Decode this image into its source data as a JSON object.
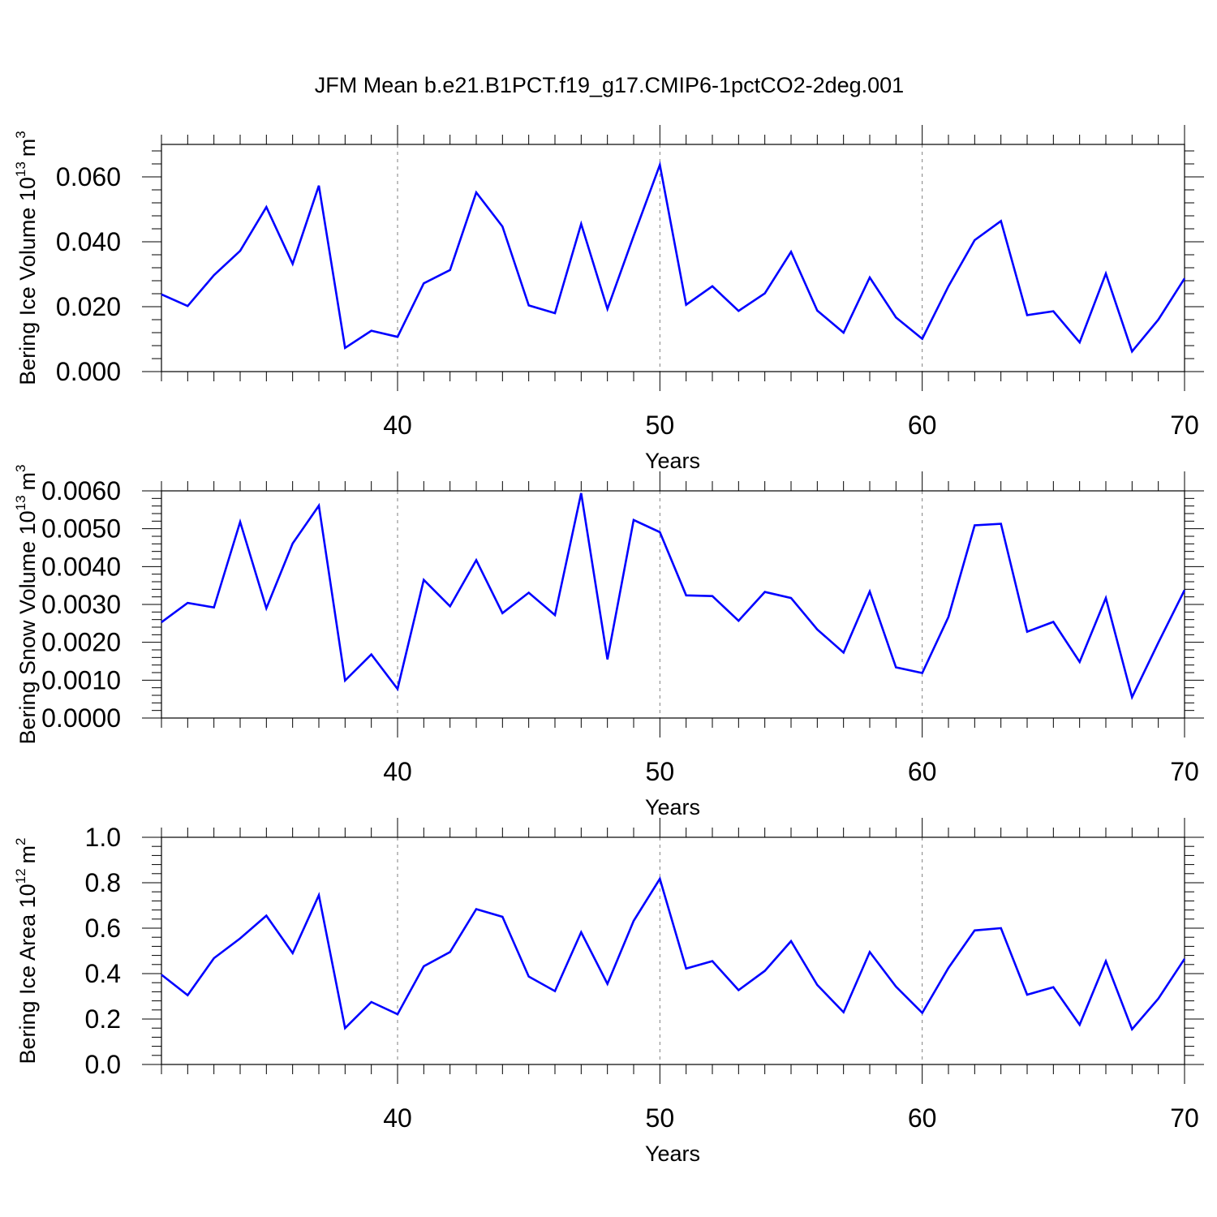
{
  "title": "JFM Mean b.e21.B1PCT.f19_g17.CMIP6-1pctCO2-2deg.001",
  "colors": {
    "line": "#0000ff",
    "axis": "#000000",
    "grid": "#7f7f7f",
    "background": "#ffffff"
  },
  "chart_data": [
    {
      "type": "line",
      "ylabel_text": "Bering Ice Volume 10",
      "ylabel_exp": "13",
      "ylabel_unit": "m",
      "ylabel_unit_exp": "3",
      "xlabel": "Years",
      "xlim": [
        31,
        70
      ],
      "ylim": [
        0,
        0.07
      ],
      "xticks": [
        40,
        50,
        60,
        70
      ],
      "xtick_labels": [
        "40",
        "50",
        "60",
        "70"
      ],
      "yticks": [
        0,
        0.02,
        0.04,
        0.06
      ],
      "ytick_labels": [
        "0.000",
        "0.020",
        "0.040",
        "0.060"
      ],
      "grid": "vertical dashed at major x ticks",
      "series": [
        {
          "x": [
            31,
            32,
            33,
            34,
            35,
            36,
            37,
            38,
            39,
            40,
            41,
            42,
            43,
            44,
            45,
            46,
            47,
            48,
            49,
            50,
            51,
            52,
            53,
            54,
            55,
            56,
            57,
            58,
            59,
            60,
            61,
            62,
            63,
            64,
            65,
            66,
            67,
            68,
            69,
            70
          ],
          "y": [
            0.0238,
            0.0202,
            0.0297,
            0.0372,
            0.0507,
            0.0332,
            0.0573,
            0.0073,
            0.0126,
            0.0107,
            0.0272,
            0.0313,
            0.0552,
            0.0447,
            0.0204,
            0.018,
            0.0455,
            0.0193,
            0.0418,
            0.0637,
            0.0206,
            0.0263,
            0.0187,
            0.0241,
            0.0369,
            0.0188,
            0.012,
            0.029,
            0.0167,
            0.0101,
            0.0263,
            0.0405,
            0.0464,
            0.0174,
            0.0186,
            0.009,
            0.0302,
            0.0062,
            0.016,
            0.0287
          ]
        }
      ]
    },
    {
      "type": "line",
      "ylabel_text": "Bering Snow Volume 10",
      "ylabel_exp": "13",
      "ylabel_unit": "m",
      "ylabel_unit_exp": "3",
      "xlabel": "Years",
      "xlim": [
        31,
        70
      ],
      "ylim": [
        0,
        0.006
      ],
      "xticks": [
        40,
        50,
        60,
        70
      ],
      "xtick_labels": [
        "40",
        "50",
        "60",
        "70"
      ],
      "yticks": [
        0,
        0.001,
        0.002,
        0.003,
        0.004,
        0.005,
        0.006
      ],
      "ytick_labels": [
        "0.0000",
        "0.0010",
        "0.0020",
        "0.0030",
        "0.0040",
        "0.0050",
        "0.0060"
      ],
      "grid": "vertical dashed at major x ticks",
      "series": [
        {
          "x": [
            31,
            32,
            33,
            34,
            35,
            36,
            37,
            38,
            39,
            40,
            41,
            42,
            43,
            44,
            45,
            46,
            47,
            48,
            49,
            50,
            51,
            52,
            53,
            54,
            55,
            56,
            57,
            58,
            59,
            60,
            61,
            62,
            63,
            64,
            65,
            66,
            67,
            68,
            69,
            70
          ],
          "y": [
            0.00253,
            0.00304,
            0.00292,
            0.00518,
            0.0029,
            0.00461,
            0.00561,
            0.00099,
            0.00168,
            0.00077,
            0.00365,
            0.00295,
            0.00417,
            0.00277,
            0.00331,
            0.00272,
            0.00594,
            0.00155,
            0.00523,
            0.00491,
            0.00324,
            0.00322,
            0.00257,
            0.00333,
            0.00317,
            0.00234,
            0.00173,
            0.00334,
            0.00134,
            0.00119,
            0.00267,
            0.00509,
            0.00513,
            0.00228,
            0.00254,
            0.00148,
            0.00317,
            0.00055,
            0.00199,
            0.00338
          ]
        }
      ]
    },
    {
      "type": "line",
      "ylabel_text": "Bering Ice Area 10",
      "ylabel_exp": "12",
      "ylabel_unit": "m",
      "ylabel_unit_exp": "2",
      "xlabel": "Years",
      "xlim": [
        31,
        70
      ],
      "ylim": [
        0,
        1.0
      ],
      "xticks": [
        40,
        50,
        60,
        70
      ],
      "xtick_labels": [
        "40",
        "50",
        "60",
        "70"
      ],
      "yticks": [
        0,
        0.2,
        0.4,
        0.6,
        0.8,
        1.0
      ],
      "ytick_labels": [
        "0.0",
        "0.2",
        "0.4",
        "0.6",
        "0.8",
        "1.0"
      ],
      "grid": "vertical dashed at major x ticks",
      "series": [
        {
          "x": [
            31,
            32,
            33,
            34,
            35,
            36,
            37,
            38,
            39,
            40,
            41,
            42,
            43,
            44,
            45,
            46,
            47,
            48,
            49,
            50,
            51,
            52,
            53,
            54,
            55,
            56,
            57,
            58,
            59,
            60,
            61,
            62,
            63,
            64,
            65,
            66,
            67,
            68,
            69,
            70
          ],
          "y": [
            0.395,
            0.305,
            0.468,
            0.555,
            0.655,
            0.49,
            0.745,
            0.16,
            0.275,
            0.221,
            0.432,
            0.495,
            0.684,
            0.65,
            0.387,
            0.323,
            0.582,
            0.355,
            0.632,
            0.817,
            0.422,
            0.455,
            0.327,
            0.412,
            0.543,
            0.35,
            0.23,
            0.495,
            0.343,
            0.227,
            0.425,
            0.59,
            0.6,
            0.307,
            0.34,
            0.175,
            0.455,
            0.155,
            0.29,
            0.465
          ]
        }
      ]
    }
  ]
}
